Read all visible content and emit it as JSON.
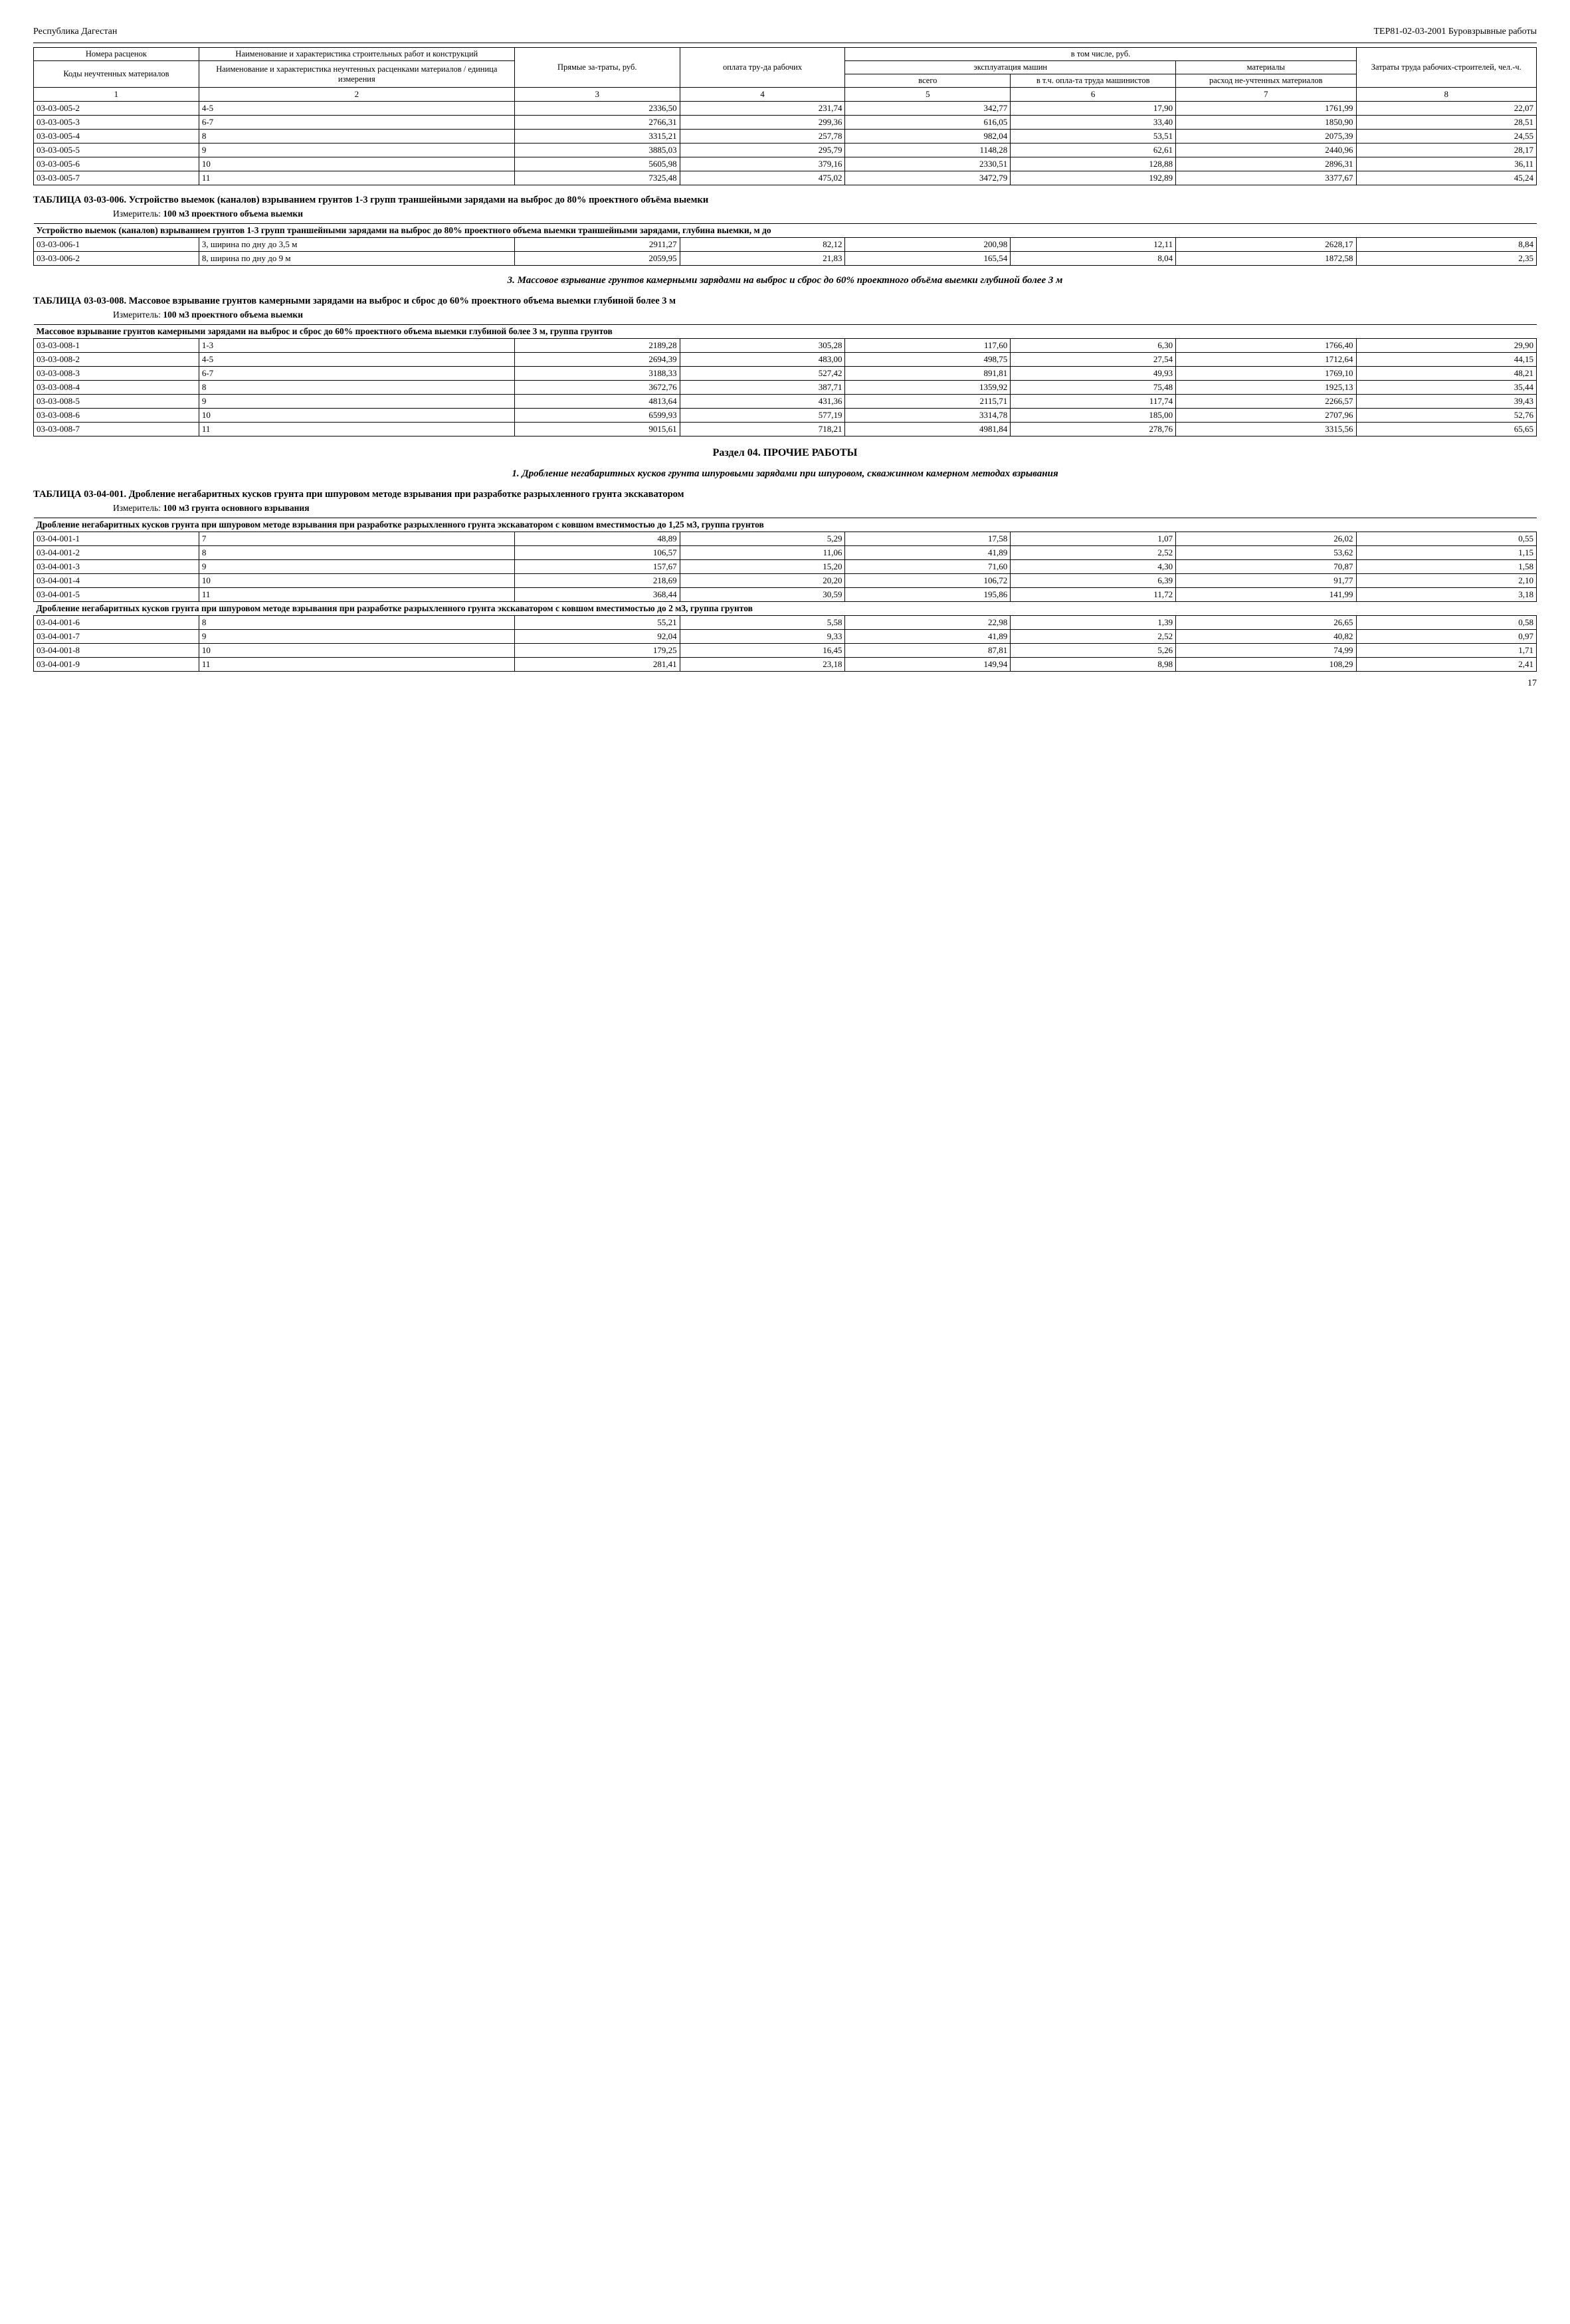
{
  "header": {
    "left": "Республика Дагестан",
    "right": "ТЕР81-02-03-2001 Буровзрывные работы"
  },
  "main_header": {
    "h1": "Номера расценок",
    "h2": "Наименование и характеристика строительных работ и конструкций",
    "h3": "Коды неучтенных материалов",
    "h4": "Наименование и характеристика неучтенных расценками материалов / единица измерения",
    "h5": "Прямые за-траты, руб.",
    "h6": "оплата тру-да рабочих",
    "h7": "в том числе, руб.",
    "h8": "эксплуатация машин",
    "h9": "материалы",
    "h10": "всего",
    "h11": "в т.ч. опла-та труда машинистов",
    "h12": "расход не-учтенных материалов",
    "h13": "Затраты труда рабочих-строителей, чел.-ч.",
    "cn": [
      "1",
      "2",
      "3",
      "4",
      "5",
      "6",
      "7",
      "8"
    ]
  },
  "top_rows": [
    {
      "code": "03-03-005-2",
      "desc": "4-5",
      "c3": "2336,50",
      "c4": "231,74",
      "c5": "342,77",
      "c6": "17,90",
      "c7": "1761,99",
      "c8": "22,07"
    },
    {
      "code": "03-03-005-3",
      "desc": "6-7",
      "c3": "2766,31",
      "c4": "299,36",
      "c5": "616,05",
      "c6": "33,40",
      "c7": "1850,90",
      "c8": "28,51"
    },
    {
      "code": "03-03-005-4",
      "desc": "8",
      "c3": "3315,21",
      "c4": "257,78",
      "c5": "982,04",
      "c6": "53,51",
      "c7": "2075,39",
      "c8": "24,55"
    },
    {
      "code": "03-03-005-5",
      "desc": "9",
      "c3": "3885,03",
      "c4": "295,79",
      "c5": "1148,28",
      "c6": "62,61",
      "c7": "2440,96",
      "c8": "28,17"
    },
    {
      "code": "03-03-005-6",
      "desc": "10",
      "c3": "5605,98",
      "c4": "379,16",
      "c5": "2330,51",
      "c6": "128,88",
      "c7": "2896,31",
      "c8": "36,11"
    },
    {
      "code": "03-03-005-7",
      "desc": "11",
      "c3": "7325,48",
      "c4": "475,02",
      "c5": "3472,79",
      "c6": "192,89",
      "c7": "3377,67",
      "c8": "45,24"
    }
  ],
  "t006": {
    "title_label": "ТАБЛИЦА  03-03-006.",
    "title_text": "Устройство выемок (каналов) взрыванием грунтов 1-3 групп траншейными зарядами на выброс до 80% проектного объёма выемки",
    "measure_label": "Измеритель:",
    "measure_value": "100 м3 проектного объема выемки",
    "subhead": "Устройство выемок (каналов) взрыванием грунтов 1-3 групп траншейными зарядами на выброс до 80% проектного объема выемки траншейными зарядами, глубина выемки, м до",
    "rows": [
      {
        "code": "03-03-006-1",
        "desc": "3, ширина по дну до 3,5 м",
        "c3": "2911,27",
        "c4": "82,12",
        "c5": "200,98",
        "c6": "12,11",
        "c7": "2628,17",
        "c8": "8,84"
      },
      {
        "code": "03-03-006-2",
        "desc": "8, ширина по дну до 9 м",
        "c3": "2059,95",
        "c4": "21,83",
        "c5": "165,54",
        "c6": "8,04",
        "c7": "1872,58",
        "c8": "2,35"
      }
    ]
  },
  "italic3": "3. Массовое взрывание грунтов камерными зарядами на выброс и сброс до 60% проектного объёма выемки глубиной более 3 м",
  "t008": {
    "title_label": "ТАБЛИЦА  03-03-008.",
    "title_text": "Массовое взрывание грунтов камерными зарядами на выброс и сброс до 60% проектного объема выемки глубиной более 3 м",
    "measure_label": "Измеритель:",
    "measure_value": "100 м3 проектного объема выемки",
    "subhead": "Массовое взрывание грунтов камерными зарядами на выброс и сброс до 60% проектного объема выемки глубиной более 3 м, группа грунтов",
    "rows": [
      {
        "code": "03-03-008-1",
        "desc": "1-3",
        "c3": "2189,28",
        "c4": "305,28",
        "c5": "117,60",
        "c6": "6,30",
        "c7": "1766,40",
        "c8": "29,90"
      },
      {
        "code": "03-03-008-2",
        "desc": "4-5",
        "c3": "2694,39",
        "c4": "483,00",
        "c5": "498,75",
        "c6": "27,54",
        "c7": "1712,64",
        "c8": "44,15"
      },
      {
        "code": "03-03-008-3",
        "desc": "6-7",
        "c3": "3188,33",
        "c4": "527,42",
        "c5": "891,81",
        "c6": "49,93",
        "c7": "1769,10",
        "c8": "48,21"
      },
      {
        "code": "03-03-008-4",
        "desc": "8",
        "c3": "3672,76",
        "c4": "387,71",
        "c5": "1359,92",
        "c6": "75,48",
        "c7": "1925,13",
        "c8": "35,44"
      },
      {
        "code": "03-03-008-5",
        "desc": "9",
        "c3": "4813,64",
        "c4": "431,36",
        "c5": "2115,71",
        "c6": "117,74",
        "c7": "2266,57",
        "c8": "39,43"
      },
      {
        "code": "03-03-008-6",
        "desc": "10",
        "c3": "6599,93",
        "c4": "577,19",
        "c5": "3314,78",
        "c6": "185,00",
        "c7": "2707,96",
        "c8": "52,76"
      },
      {
        "code": "03-03-008-7",
        "desc": "11",
        "c3": "9015,61",
        "c4": "718,21",
        "c5": "4981,84",
        "c6": "278,76",
        "c7": "3315,56",
        "c8": "65,65"
      }
    ]
  },
  "section04": "Раздел 04.  ПРОЧИЕ РАБОТЫ",
  "italic04": "1. Дробление негабаритных кусков грунта шпуровыми зарядами при шпуровом, скважинном камерном методах взрывания",
  "t401": {
    "title_label": "ТАБЛИЦА  03-04-001.",
    "title_text": "Дробление негабаритных кусков грунта при шпуровом методе взрывания при разработке разрыхленного грунта экскаватором",
    "measure_label": "Измеритель:",
    "measure_value": "100 м3 грунта основного взрывания",
    "subhead1": "Дробление негабаритных кусков грунта при шпуровом методе взрывания при разработке разрыхленного грунта экскаватором с ковшом вместимостью до 1,25 м3, группа грунтов",
    "rows1": [
      {
        "code": "03-04-001-1",
        "desc": "7",
        "c3": "48,89",
        "c4": "5,29",
        "c5": "17,58",
        "c6": "1,07",
        "c7": "26,02",
        "c8": "0,55"
      },
      {
        "code": "03-04-001-2",
        "desc": "8",
        "c3": "106,57",
        "c4": "11,06",
        "c5": "41,89",
        "c6": "2,52",
        "c7": "53,62",
        "c8": "1,15"
      },
      {
        "code": "03-04-001-3",
        "desc": "9",
        "c3": "157,67",
        "c4": "15,20",
        "c5": "71,60",
        "c6": "4,30",
        "c7": "70,87",
        "c8": "1,58"
      },
      {
        "code": "03-04-001-4",
        "desc": "10",
        "c3": "218,69",
        "c4": "20,20",
        "c5": "106,72",
        "c6": "6,39",
        "c7": "91,77",
        "c8": "2,10"
      },
      {
        "code": "03-04-001-5",
        "desc": "11",
        "c3": "368,44",
        "c4": "30,59",
        "c5": "195,86",
        "c6": "11,72",
        "c7": "141,99",
        "c8": "3,18"
      }
    ],
    "subhead2": "Дробление негабаритных кусков грунта при шпуровом методе взрывания при разработке разрыхленного грунта экскаватором с ковшом вместимостью до 2 м3, группа грунтов",
    "rows2": [
      {
        "code": "03-04-001-6",
        "desc": "8",
        "c3": "55,21",
        "c4": "5,58",
        "c5": "22,98",
        "c6": "1,39",
        "c7": "26,65",
        "c8": "0,58"
      },
      {
        "code": "03-04-001-7",
        "desc": "9",
        "c3": "92,04",
        "c4": "9,33",
        "c5": "41,89",
        "c6": "2,52",
        "c7": "40,82",
        "c8": "0,97"
      },
      {
        "code": "03-04-001-8",
        "desc": "10",
        "c3": "179,25",
        "c4": "16,45",
        "c5": "87,81",
        "c6": "5,26",
        "c7": "74,99",
        "c8": "1,71"
      },
      {
        "code": "03-04-001-9",
        "desc": "11",
        "c3": "281,41",
        "c4": "23,18",
        "c5": "149,94",
        "c6": "8,98",
        "c7": "108,29",
        "c8": "2,41"
      }
    ]
  },
  "page_number": "17"
}
